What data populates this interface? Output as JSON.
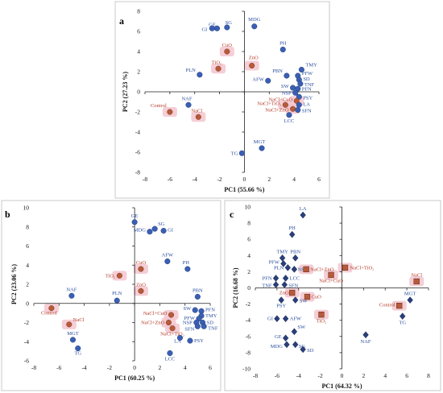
{
  "colors": {
    "variable": "#3a5fb4",
    "treatment": "#b85a3a",
    "variable_label": "#2b4f9e",
    "treatment_label": "#b43c28",
    "highlight": "#f3c6cf"
  },
  "chart_data": [
    {
      "type": "scatter",
      "panel": "a",
      "marker": "circle",
      "xlabel": "PC1 (55.66 %)",
      "ylabel": "PC2 (27.23 %)",
      "xlim": [
        -8,
        6
      ],
      "ylim": [
        -8,
        8
      ],
      "xticks": [
        -8,
        -6,
        -4,
        -2,
        0,
        2,
        4,
        6
      ],
      "yticks": [
        -8,
        -6,
        -4,
        -2,
        0,
        2,
        4,
        6,
        8
      ],
      "points": [
        {
          "label": "GE",
          "x": -2.2,
          "y": 6.3,
          "kind": "variable"
        },
        {
          "label": "SG",
          "x": -1.4,
          "y": 6.4,
          "kind": "variable"
        },
        {
          "label": "GI",
          "x": -2.6,
          "y": 6.3,
          "kind": "variable"
        },
        {
          "label": "MDG",
          "x": 0.8,
          "y": 6.5,
          "kind": "variable"
        },
        {
          "label": "CuO",
          "x": -1.4,
          "y": 4.0,
          "kind": "treatment"
        },
        {
          "label": "ZnO",
          "x": 0.6,
          "y": 2.6,
          "kind": "treatment"
        },
        {
          "label": "TiO₂",
          "x": -2.1,
          "y": 2.3,
          "kind": "treatment"
        },
        {
          "label": "PLN",
          "x": -3.6,
          "y": 1.7,
          "kind": "variable"
        },
        {
          "label": "PH",
          "x": 3.1,
          "y": 4.2,
          "kind": "variable"
        },
        {
          "label": "TMY",
          "x": 4.6,
          "y": 2.2,
          "kind": "variable"
        },
        {
          "label": "PBN",
          "x": 3.4,
          "y": 1.6,
          "kind": "variable"
        },
        {
          "label": "PFW",
          "x": 4.3,
          "y": 1.6,
          "kind": "variable"
        },
        {
          "label": "SD",
          "x": 4.4,
          "y": 1.2,
          "kind": "variable"
        },
        {
          "label": "TNF",
          "x": 4.5,
          "y": 0.8,
          "kind": "variable"
        },
        {
          "label": "AFW",
          "x": 1.9,
          "y": 1.1,
          "kind": "variable"
        },
        {
          "label": "SW",
          "x": 3.9,
          "y": 0.4,
          "kind": "variable"
        },
        {
          "label": "PFN",
          "x": 4.3,
          "y": 0.3,
          "kind": "variable"
        },
        {
          "label": "NSP",
          "x": 4.1,
          "y": -0.1,
          "kind": "variable"
        },
        {
          "label": "PSY",
          "x": 4.4,
          "y": -0.5,
          "kind": "variable"
        },
        {
          "label": "NaCl+CuO",
          "x": 4.2,
          "y": -0.9,
          "kind": "treatment"
        },
        {
          "label": "NaCl+TiO₂",
          "x": 3.3,
          "y": -1.3,
          "kind": "treatment"
        },
        {
          "label": "LA",
          "x": 4.4,
          "y": -1.3,
          "kind": "variable"
        },
        {
          "label": "NaCl+ZnO",
          "x": 3.9,
          "y": -1.7,
          "kind": "treatment"
        },
        {
          "label": "SFN",
          "x": 4.3,
          "y": -1.8,
          "kind": "variable"
        },
        {
          "label": "LCC",
          "x": 3.6,
          "y": -2.3,
          "kind": "variable"
        },
        {
          "label": "NAF",
          "x": -4.5,
          "y": -1.3,
          "kind": "variable"
        },
        {
          "label": "Control",
          "x": -6.0,
          "y": -2.0,
          "kind": "treatment"
        },
        {
          "label": "NaCl",
          "x": -3.7,
          "y": -2.5,
          "kind": "treatment"
        },
        {
          "label": "MGT",
          "x": 1.4,
          "y": -5.6,
          "kind": "variable"
        },
        {
          "label": "TG",
          "x": -0.2,
          "y": -6.1,
          "kind": "variable"
        }
      ]
    },
    {
      "type": "scatter",
      "panel": "b",
      "marker": "circle",
      "xlabel": "PC1 (60.25 %)",
      "ylabel": "PC2 (23.06 %)",
      "xlim": [
        -8,
        6
      ],
      "ylim": [
        -6,
        10
      ],
      "xticks": [
        -8,
        -6,
        -4,
        -2,
        0,
        2,
        4,
        6
      ],
      "yticks": [
        -6,
        -4,
        -2,
        0,
        2,
        4,
        6,
        8,
        10
      ],
      "points": [
        {
          "label": "GE",
          "x": 0.0,
          "y": 8.5,
          "kind": "variable"
        },
        {
          "label": "SG",
          "x": 1.6,
          "y": 7.8,
          "kind": "variable"
        },
        {
          "label": "MDG",
          "x": 1.2,
          "y": 7.5,
          "kind": "variable"
        },
        {
          "label": "GI",
          "x": 2.3,
          "y": 7.6,
          "kind": "variable"
        },
        {
          "label": "AFW",
          "x": 2.6,
          "y": 4.4,
          "kind": "variable"
        },
        {
          "label": "PH",
          "x": 4.2,
          "y": 3.6,
          "kind": "variable"
        },
        {
          "label": "CuO",
          "x": 0.5,
          "y": 3.6,
          "kind": "treatment"
        },
        {
          "label": "TiO₂",
          "x": -1.2,
          "y": 2.9,
          "kind": "treatment"
        },
        {
          "label": "ZnO",
          "x": 0.5,
          "y": 1.3,
          "kind": "treatment"
        },
        {
          "label": "PBN",
          "x": 5.0,
          "y": 0.7,
          "kind": "variable"
        },
        {
          "label": "NAF",
          "x": -5.0,
          "y": 0.8,
          "kind": "variable"
        },
        {
          "label": "PLN",
          "x": -1.4,
          "y": 0.3,
          "kind": "variable"
        },
        {
          "label": "Control",
          "x": -6.6,
          "y": -0.5,
          "kind": "treatment"
        },
        {
          "label": "NaCl",
          "x": -5.2,
          "y": -2.2,
          "kind": "treatment"
        },
        {
          "label": "MGT",
          "x": -4.9,
          "y": -3.8,
          "kind": "variable"
        },
        {
          "label": "TG",
          "x": -4.5,
          "y": -4.7,
          "kind": "variable"
        },
        {
          "label": "NaCl+CuO",
          "x": 2.9,
          "y": -1.2,
          "kind": "treatment"
        },
        {
          "label": "NaCl+ZnO",
          "x": 2.7,
          "y": -2.0,
          "kind": "treatment"
        },
        {
          "label": "NaCl+TiO₂",
          "x": 3.0,
          "y": -2.6,
          "kind": "treatment"
        },
        {
          "label": "SW",
          "x": 4.8,
          "y": -0.7,
          "kind": "variable"
        },
        {
          "label": "PFN",
          "x": 5.3,
          "y": -0.8,
          "kind": "variable"
        },
        {
          "label": "TMY",
          "x": 5.3,
          "y": -1.3,
          "kind": "variable"
        },
        {
          "label": "PFW",
          "x": 5.1,
          "y": -1.6,
          "kind": "variable"
        },
        {
          "label": "NSP",
          "x": 4.9,
          "y": -2.0,
          "kind": "variable"
        },
        {
          "label": "SD",
          "x": 5.4,
          "y": -2.0,
          "kind": "variable"
        },
        {
          "label": "SFN",
          "x": 5.0,
          "y": -2.4,
          "kind": "variable"
        },
        {
          "label": "TNF",
          "x": 5.5,
          "y": -2.4,
          "kind": "variable"
        },
        {
          "label": "LA",
          "x": 3.6,
          "y": -3.6,
          "kind": "variable"
        },
        {
          "label": "PSY",
          "x": 4.4,
          "y": -3.9,
          "kind": "variable"
        },
        {
          "label": "LCC",
          "x": 2.8,
          "y": -5.2,
          "kind": "variable"
        }
      ]
    },
    {
      "type": "scatter",
      "panel": "c",
      "marker": "diamond",
      "xlabel": "PC1 (64.32 %)",
      "ylabel": "PC2 (16.68 %)",
      "xlim": [
        -8,
        8
      ],
      "ylim": [
        -10,
        10
      ],
      "xticks": [
        -8,
        -6,
        -4,
        -2,
        0,
        2,
        4,
        6,
        8
      ],
      "yticks": [
        -10,
        -8,
        -6,
        -4,
        -2,
        0,
        2,
        4,
        6,
        8,
        10
      ],
      "points": [
        {
          "label": "LA",
          "x": -3.6,
          "y": 9.0,
          "kind": "variable"
        },
        {
          "label": "PH",
          "x": -4.6,
          "y": 6.6,
          "kind": "variable"
        },
        {
          "label": "TMY",
          "x": -5.5,
          "y": 3.7,
          "kind": "variable"
        },
        {
          "label": "PBN",
          "x": -4.3,
          "y": 3.7,
          "kind": "variable"
        },
        {
          "label": "PFW",
          "x": -5.4,
          "y": 3.0,
          "kind": "variable"
        },
        {
          "label": "PLN",
          "x": -5.0,
          "y": 2.5,
          "kind": "variable"
        },
        {
          "label": "NSP",
          "x": -4.4,
          "y": 2.3,
          "kind": "variable"
        },
        {
          "label": "NaCl+ZnO",
          "x": -3.3,
          "y": 2.3,
          "kind": "treatment"
        },
        {
          "label": "NaCl+TiO₂",
          "x": 0.3,
          "y": 2.5,
          "kind": "treatment"
        },
        {
          "label": "NaCl",
          "x": 6.9,
          "y": 0.8,
          "kind": "treatment"
        },
        {
          "label": "PFN",
          "x": -6.1,
          "y": 1.2,
          "kind": "variable"
        },
        {
          "label": "LCC",
          "x": -5.2,
          "y": 1.2,
          "kind": "variable"
        },
        {
          "label": "NaCl+CuO",
          "x": -1.0,
          "y": 1.6,
          "kind": "treatment"
        },
        {
          "label": "TNF",
          "x": -6.1,
          "y": 0.4,
          "kind": "variable"
        },
        {
          "label": "SFN",
          "x": -5.3,
          "y": 0.4,
          "kind": "variable"
        },
        {
          "label": "ZnO",
          "x": -4.6,
          "y": -0.6,
          "kind": "treatment"
        },
        {
          "label": "CuO",
          "x": -3.2,
          "y": -1.1,
          "kind": "treatment"
        },
        {
          "label": "PSY",
          "x": -5.6,
          "y": -1.5,
          "kind": "variable"
        },
        {
          "label": "SW",
          "x": -4.3,
          "y": -1.5,
          "kind": "variable"
        },
        {
          "label": "TiO₂",
          "x": -1.9,
          "y": -3.3,
          "kind": "treatment"
        },
        {
          "label": "MGT",
          "x": 6.3,
          "y": -1.5,
          "kind": "variable"
        },
        {
          "label": "Control",
          "x": 5.3,
          "y": -2.2,
          "kind": "treatment"
        },
        {
          "label": "TG",
          "x": 5.6,
          "y": -3.5,
          "kind": "variable"
        },
        {
          "label": "GI",
          "x": -6.0,
          "y": -3.8,
          "kind": "variable"
        },
        {
          "label": "AFW",
          "x": -5.2,
          "y": -3.8,
          "kind": "variable"
        },
        {
          "label": "NAF",
          "x": 2.2,
          "y": -5.8,
          "kind": "variable"
        },
        {
          "label": "SW",
          "x": -4.4,
          "y": -5.4,
          "kind": "variable"
        },
        {
          "label": "GE",
          "x": -5.2,
          "y": -6.2,
          "kind": "variable"
        },
        {
          "label": "MDG",
          "x": -5.1,
          "y": -7.0,
          "kind": "variable"
        },
        {
          "label": "SG",
          "x": -4.3,
          "y": -7.0,
          "kind": "variable"
        },
        {
          "label": "SD",
          "x": -3.6,
          "y": -7.6,
          "kind": "variable"
        }
      ]
    }
  ]
}
